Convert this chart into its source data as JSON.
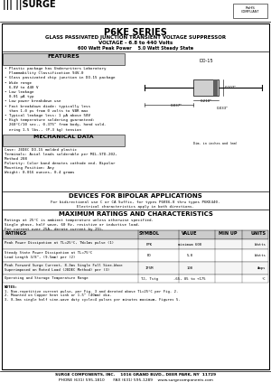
{
  "title": "P6KE SERIES",
  "subtitle1": "GLASS PASSIVATED JUNCTION TRANSIENT VOLTAGE SUPPRESSOR",
  "subtitle2": "VOLTAGE - 6.8 to 440 Volts",
  "subtitle3": "600 Watt Peak Power    5.0 Watt Steady State",
  "features_title": "FEATURES",
  "features_text": [
    "• Plastic package has Underwriters Laboratory",
    "  Flammability Classification 94V-0",
    "• Glass passivated chip junction in DO-15 package",
    "• Wide range",
    "  6.8V to 440 V",
    "• Low leakage",
    "  0.01 μA typ",
    "• Low power breakdown use",
    "• Fast breakdown diode: typically less",
    "  than 1.0 ps from 0 volts to VBR max",
    "• Typical leakage less: 1 μA above 50V",
    "• High temperature soldering guaranteed:",
    "  260°C/10 sec., 0.375\" from body, hand sold-",
    "  ering 1.5 lbs., (P.3 kg) tension"
  ],
  "mech_title": "MECHANICAL DATA",
  "mech_lines": [
    "Case: JEDEC DO-15 molded plastic",
    "Terminals: Axial leads solderable per MIL-STD-202,",
    "Method 208",
    "Polarity: Color band denotes cathode end. Bipolar",
    "Mounting Position: Any",
    "Weight: 0.016 ounces, 0.4 grams"
  ],
  "bipolar_title": "DEVICES FOR BIPOLAR APPLICATIONS",
  "bipolar_line1": "For bidirectional use C or CA Suffix, for types P6KE6.8 thru types P6KE440.",
  "bipolar_line2": "Electrical characteristics apply in both directions.",
  "ratings_title": "MAXIMUM RATINGS AND CHARACTERISTICS",
  "ratings_note1": "Ratings at 25°C is ambient temperature unless otherwise specified.",
  "ratings_note2": "Single phase, half wave, 60 Hz, resistive or inductive load.",
  "ratings_note3": "For current over 25A, derate current by 25%.",
  "table_col_headers": [
    "RATINGS",
    "SYMBOL",
    "VALUE",
    "MIN UP",
    "UNITS"
  ],
  "table_rows": [
    [
      "Peak Power Dissipation at TL=25°C, TW=1ms pulse (1)",
      "PPK",
      "minimum 600",
      "",
      "Watts"
    ],
    [
      "Steady State Power Dissipation at TL=75°C\nLead Length 3/8\", (9.5mm) per (2)",
      "PD",
      "5.0",
      "",
      "Watts"
    ],
    [
      "Peak Forward Surge Current, 8.3ms Single Full Sine-Wave\nSuperimposed on Rated Load (JEDEC Method) per (3)",
      "IFSM",
      "100",
      "",
      "Amps"
    ],
    [
      "Operating and Storage Temperature Range",
      "TJ, Tstg",
      "-65, 85 to +175",
      "",
      "°C"
    ]
  ],
  "notes_title": "NOTES:",
  "notes": [
    "1. Non-repetitive current pulse, per Fig. 3 and derated above TL=25°C per Fig. 2.",
    "2. Mounted on Copper heat sink or 1.5\" (40mm) dia.",
    "3. 8.3ms single half sine-wave duty cycle=4 pulses per minutes maximum, Figures 5."
  ],
  "footer1": "SURGE COMPONENTS, INC.    1016 GRAND BLVD., DEER PARK, NY  11729",
  "footer2": "PHONE (631) 595-1810       FAX (631) 595-1289    www.surgecomponents.com",
  "bg_color": "#ffffff"
}
